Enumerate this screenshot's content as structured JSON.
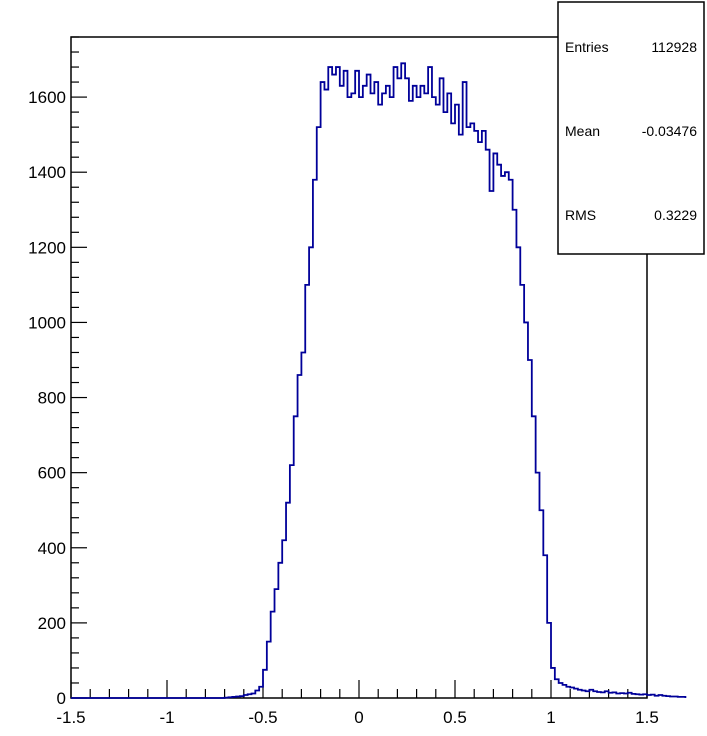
{
  "chart_data": {
    "type": "histogram",
    "title": "",
    "xlabel": "",
    "ylabel": "",
    "xlim": [
      -1.5,
      1.5
    ],
    "ylim": [
      0,
      1760
    ],
    "bin_start": -1.5,
    "bin_width": 0.02,
    "x_ticks": [
      -1.5,
      -1,
      -0.5,
      0,
      0.5,
      1,
      1.5
    ],
    "x_tick_labels": [
      "-1.5",
      "-1",
      "-0.5",
      "0",
      "0.5",
      "1",
      "1.5"
    ],
    "y_ticks": [
      0,
      200,
      400,
      600,
      800,
      1000,
      1200,
      1400,
      1600
    ],
    "y_tick_labels": [
      "0",
      "200",
      "400",
      "600",
      "800",
      "1000",
      "1200",
      "1400",
      "1600"
    ],
    "line_color": "#000099",
    "values": [
      0,
      0,
      0,
      0,
      0,
      0,
      0,
      0,
      0,
      0,
      0,
      0,
      0,
      0,
      0,
      0,
      0,
      0,
      0,
      0,
      0,
      0,
      0,
      0,
      0,
      0,
      0,
      0,
      0,
      0,
      0,
      0,
      0,
      0,
      0,
      0,
      0,
      0,
      0,
      0,
      1,
      2,
      3,
      4,
      5,
      8,
      10,
      12,
      20,
      30,
      75,
      150,
      230,
      290,
      360,
      420,
      520,
      620,
      750,
      860,
      920,
      1100,
      1200,
      1380,
      1520,
      1640,
      1620,
      1680,
      1660,
      1680,
      1630,
      1670,
      1600,
      1610,
      1670,
      1600,
      1630,
      1660,
      1610,
      1640,
      1580,
      1610,
      1630,
      1600,
      1680,
      1650,
      1690,
      1650,
      1590,
      1630,
      1600,
      1630,
      1610,
      1680,
      1600,
      1580,
      1650,
      1560,
      1610,
      1530,
      1580,
      1500,
      1640,
      1520,
      1530,
      1510,
      1480,
      1510,
      1460,
      1350,
      1450,
      1420,
      1390,
      1400,
      1380,
      1300,
      1200,
      1100,
      1000,
      900,
      750,
      600,
      500,
      380,
      200,
      80,
      50,
      40,
      35,
      30,
      28,
      25,
      22,
      20,
      18,
      22,
      18,
      16,
      15,
      18,
      14,
      15,
      12,
      13,
      12,
      14,
      11,
      10,
      9,
      10,
      8,
      9,
      6,
      8,
      6,
      5,
      4,
      4,
      3,
      3
    ]
  },
  "stats_box": {
    "entries_label": "Entries",
    "entries_value": "112928",
    "mean_label": "Mean",
    "mean_value": "-0.03476",
    "rms_label": "RMS",
    "rms_value": "0.3229"
  }
}
